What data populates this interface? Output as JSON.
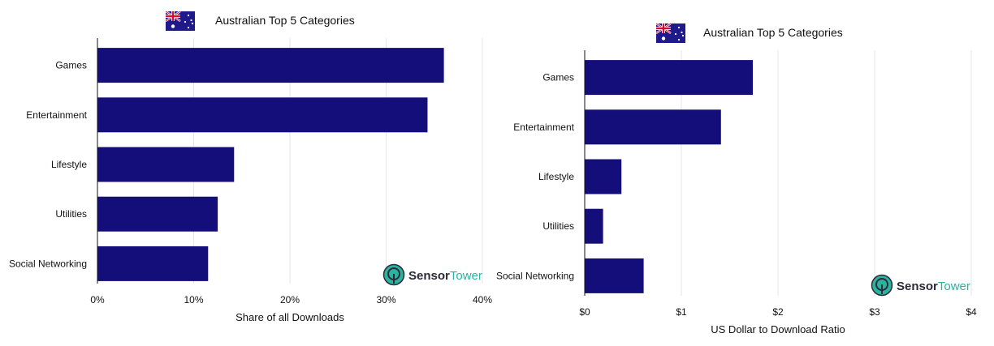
{
  "colors": {
    "bar": "#140e7a",
    "grid": "#e6e6e6",
    "axis": "#111111",
    "brand_dark": "#2b2b3a",
    "brand_teal": "#2bb3a0",
    "flag_blue": "#1f1a8c",
    "flag_red": "#cc1133",
    "flag_white": "#ffffff"
  },
  "brand": {
    "part1": "Sensor",
    "part2": "Tower",
    "icon": "sensor-tower-logo-icon"
  },
  "chart_data": [
    {
      "type": "bar",
      "orientation": "horizontal",
      "title": "Australian Top 5 Categories",
      "title_icon": "australian-flag-icon",
      "xlabel": "Share of all Downloads",
      "ylabel": "",
      "categories": [
        "Games",
        "Entertainment",
        "Lifestyle",
        "Utilities",
        "Social Networking"
      ],
      "values": [
        36,
        34.3,
        14.2,
        12.5,
        11.5
      ],
      "xlim": [
        0,
        40
      ],
      "ticks": [
        0,
        10,
        20,
        30,
        40
      ],
      "tick_labels": [
        "0%",
        "10%",
        "20%",
        "30%",
        "40%"
      ],
      "grid": true
    },
    {
      "type": "bar",
      "orientation": "horizontal",
      "title": "Australian Top 5 Categories",
      "title_icon": "australian-flag-icon",
      "xlabel": "US Dollar to Download Ratio",
      "ylabel": "",
      "categories": [
        "Games",
        "Entertainment",
        "Lifestyle",
        "Utilities",
        "Social Networking"
      ],
      "values": [
        1.74,
        1.41,
        0.38,
        0.19,
        0.61
      ],
      "xlim": [
        0,
        4
      ],
      "ticks": [
        0,
        1,
        2,
        3,
        4
      ],
      "tick_labels": [
        "$0",
        "$1",
        "$2",
        "$3",
        "$4"
      ],
      "grid": true
    }
  ]
}
